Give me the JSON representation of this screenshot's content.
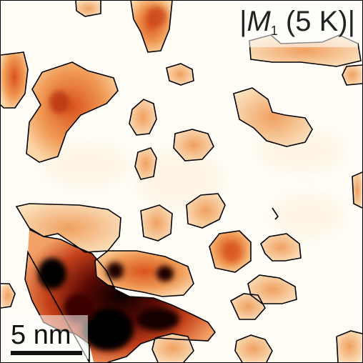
{
  "title": {
    "bar_left": "|",
    "symbol": "M",
    "subscript": "1",
    "condition": " (5 K)",
    "bar_right": "|"
  },
  "scale_bar": {
    "label": "5 nm"
  },
  "colors": {
    "background": "#fffdf6",
    "low": "#f7c58a",
    "mid": "#e8722b",
    "high": "#8e1f0c",
    "peak": "#1a0000",
    "contour": "#000000"
  }
}
